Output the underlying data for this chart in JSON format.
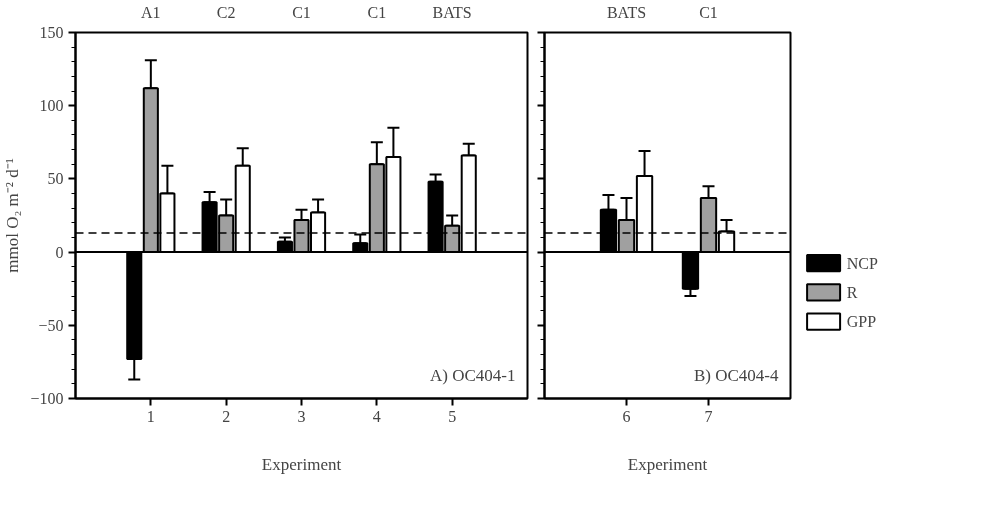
{
  "chart_data": [
    {
      "type": "bar",
      "xlabel": "Experiment",
      "ylabel": "mmol O₂ m⁻² d⁻¹",
      "categories": [
        "1",
        "2",
        "3",
        "4",
        "5"
      ],
      "annotations": [
        "A) OC404-1",
        "A1",
        "C2",
        "C1",
        "C1",
        "BATS"
      ],
      "ylim": [
        -100,
        150
      ],
      "yticks": [
        -100,
        -50,
        0,
        50,
        100,
        150
      ],
      "legend": "right",
      "ref_lines": [
        {
          "axis": "y",
          "value": 13,
          "line_style": "dashed",
          "color": "#000000"
        }
      ],
      "series": [
        {
          "name": "NCP",
          "color": "#000000",
          "values": [
            -73,
            34,
            7,
            6,
            48
          ],
          "errors": [
            14,
            7,
            3,
            6,
            5
          ]
        },
        {
          "name": "R",
          "color": "#a0a0a0",
          "values": [
            112,
            25,
            22,
            60,
            18
          ],
          "errors": [
            19,
            11,
            7,
            15,
            7
          ]
        },
        {
          "name": "GPP",
          "color": "#ffffff",
          "values": [
            40,
            59,
            27,
            65,
            66
          ],
          "errors": [
            19,
            12,
            9,
            20,
            8
          ]
        }
      ]
    },
    {
      "type": "bar",
      "xlabel": "Experiment",
      "categories": [
        "6",
        "7"
      ],
      "annotations": [
        "B) OC404-4",
        "BATS",
        "C1"
      ],
      "ylim": [
        -100,
        150
      ],
      "yticks": [
        {
          "value": -100,
          "label": null
        },
        {
          "value": -50,
          "label": null
        },
        {
          "value": 0,
          "label": null
        },
        {
          "value": 50,
          "label": null
        },
        {
          "value": 100,
          "label": null
        },
        {
          "value": 150,
          "label": null
        }
      ],
      "tick_labels": "x",
      "ref_lines": [
        {
          "axis": "y",
          "value": 13,
          "line_style": "dashed",
          "color": "#000000"
        }
      ],
      "series": [
        {
          "color": "#000000",
          "values": [
            29,
            -25
          ],
          "errors": [
            10,
            5
          ]
        },
        {
          "color": "#a0a0a0",
          "values": [
            22,
            37
          ],
          "errors": [
            15,
            8
          ]
        },
        {
          "color": "#ffffff",
          "values": [
            52,
            14
          ],
          "errors": [
            17,
            8
          ]
        }
      ]
    }
  ]
}
